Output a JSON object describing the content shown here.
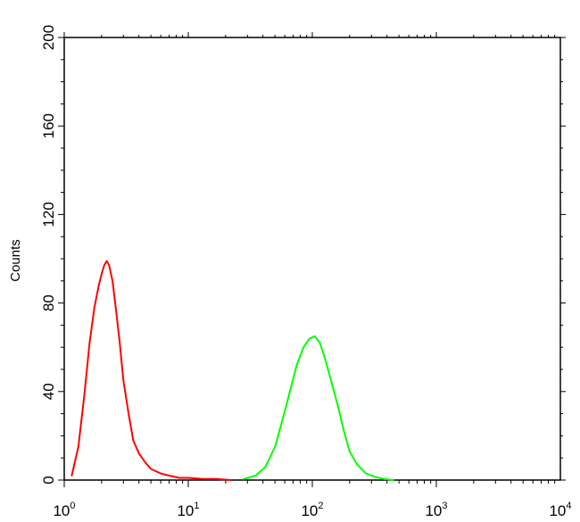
{
  "chart_data": {
    "type": "line",
    "title": "",
    "xlabel": "",
    "ylabel": "Counts",
    "x_scale": "log",
    "xlim": [
      1,
      10000
    ],
    "ylim": [
      0,
      200
    ],
    "grid": false,
    "x_ticks": [
      {
        "base": "10",
        "exp": "0"
      },
      {
        "base": "10",
        "exp": "1"
      },
      {
        "base": "10",
        "exp": "2"
      },
      {
        "base": "10",
        "exp": "3"
      },
      {
        "base": "10",
        "exp": "4"
      }
    ],
    "y_ticks": [
      "0",
      "40",
      "80",
      "120",
      "160",
      "200"
    ],
    "series": [
      {
        "color": "#ff0000",
        "x": [
          1.15,
          1.3,
          1.45,
          1.6,
          1.75,
          1.9,
          2.0,
          2.1,
          2.2,
          2.3,
          2.45,
          2.6,
          2.8,
          3.0,
          3.3,
          3.6,
          4.0,
          4.5,
          5.0,
          6.0,
          7.0,
          8.5,
          10,
          13,
          17,
          22
        ],
        "values": [
          2,
          15,
          38,
          62,
          78,
          88,
          93,
          97,
          99,
          97,
          90,
          78,
          62,
          45,
          30,
          18,
          12,
          8,
          5,
          3,
          2,
          1,
          1,
          0.5,
          0.5,
          0
        ]
      },
      {
        "color": "#00ff00",
        "x": [
          28,
          35,
          42,
          50,
          58,
          66,
          75,
          85,
          95,
          105,
          115,
          125,
          140,
          160,
          180,
          200,
          230,
          270,
          320,
          380,
          450
        ],
        "values": [
          0.5,
          2,
          6,
          15,
          28,
          40,
          52,
          60,
          64,
          65,
          62,
          56,
          46,
          34,
          22,
          13,
          7,
          3,
          1.5,
          0.5,
          0
        ]
      }
    ]
  }
}
